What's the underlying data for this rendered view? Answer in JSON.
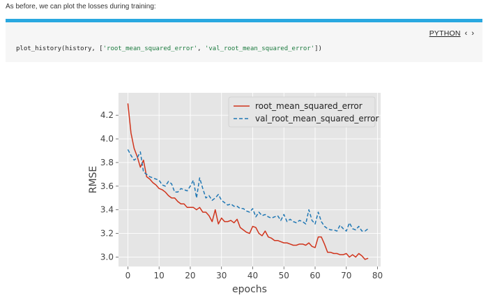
{
  "intro_text": "As before, we can plot the losses during training:",
  "code": {
    "language_label": "PYTHON",
    "prev_icon": "chevron-left-icon",
    "next_icon": "chevron-right-icon",
    "accent_color": "#29a8e0",
    "tokens": {
      "func": "plot_history(history, [",
      "arg1": "'root_mean_squared_error'",
      "sep": ", ",
      "arg2": "'val_root_mean_squared_error'",
      "end": "])"
    }
  },
  "chart_data": {
    "type": "line",
    "xlabel": "epochs",
    "ylabel": "RMSE",
    "xlim": [
      -3,
      81
    ],
    "ylim": [
      2.92,
      4.39
    ],
    "xticks": [
      0,
      10,
      20,
      30,
      40,
      50,
      60,
      70,
      80
    ],
    "yticks": [
      3.0,
      3.2,
      3.4,
      3.6,
      3.8,
      4.0,
      4.2
    ],
    "grid": true,
    "legend_position": "top-right",
    "series": [
      {
        "name": "root_mean_squared_error",
        "color": "#d0341c",
        "dash": "solid",
        "values": [
          4.3,
          4.05,
          3.92,
          3.85,
          3.76,
          3.82,
          3.68,
          3.66,
          3.63,
          3.61,
          3.58,
          3.57,
          3.55,
          3.52,
          3.5,
          3.5,
          3.47,
          3.45,
          3.45,
          3.42,
          3.42,
          3.42,
          3.4,
          3.42,
          3.38,
          3.38,
          3.35,
          3.3,
          3.4,
          3.28,
          3.33,
          3.3,
          3.3,
          3.31,
          3.29,
          3.32,
          3.25,
          3.23,
          3.21,
          3.2,
          3.26,
          3.25,
          3.2,
          3.18,
          3.22,
          3.17,
          3.16,
          3.14,
          3.14,
          3.13,
          3.12,
          3.12,
          3.11,
          3.1,
          3.1,
          3.11,
          3.11,
          3.1,
          3.12,
          3.09,
          3.08,
          3.17,
          3.17,
          3.11,
          3.04,
          3.04,
          3.03,
          3.03,
          3.02,
          3.02,
          3.03,
          3.0,
          3.02,
          3.0,
          3.03,
          3.01,
          2.98,
          2.99
        ]
      },
      {
        "name": "val_root_mean_squared_error",
        "color": "#1f77b4",
        "dash": "dashed",
        "values": [
          3.91,
          3.86,
          3.82,
          3.84,
          3.89,
          3.72,
          3.7,
          3.68,
          3.67,
          3.66,
          3.65,
          3.61,
          3.6,
          3.64,
          3.62,
          3.55,
          3.55,
          3.58,
          3.57,
          3.56,
          3.6,
          3.65,
          3.5,
          3.67,
          3.58,
          3.5,
          3.52,
          3.48,
          3.5,
          3.53,
          3.48,
          3.46,
          3.44,
          3.45,
          3.43,
          3.43,
          3.41,
          3.41,
          3.39,
          3.38,
          3.41,
          3.34,
          3.38,
          3.35,
          3.36,
          3.34,
          3.33,
          3.34,
          3.35,
          3.31,
          3.36,
          3.3,
          3.32,
          3.3,
          3.29,
          3.31,
          3.3,
          3.28,
          3.4,
          3.31,
          3.28,
          3.38,
          3.3,
          3.26,
          3.24,
          3.23,
          3.23,
          3.22,
          3.27,
          3.24,
          3.22,
          3.29,
          3.24,
          3.23,
          3.26,
          3.22,
          3.22,
          3.24
        ]
      }
    ]
  }
}
